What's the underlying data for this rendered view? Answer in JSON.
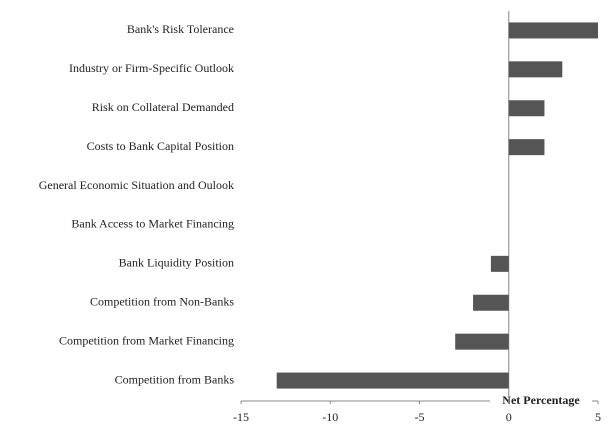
{
  "chart_data": {
    "type": "bar",
    "orientation": "horizontal",
    "categories": [
      "Bank's Risk Tolerance",
      "Industry or Firm-Specific Outlook",
      "Risk on Collateral Demanded",
      "Costs to Bank Capital Position",
      "General Economic Situation and Oulook",
      "Bank Access to Market Financing",
      "Bank Liquidity Position",
      "Competition from Non-Banks",
      "Competition from Market Financing",
      "Competition from Banks"
    ],
    "values": [
      5,
      3,
      2,
      2,
      0,
      0,
      -1,
      -2,
      -3,
      -13
    ],
    "color": "#555555",
    "xlabel": "Net Percentage",
    "xlim": [
      -15,
      5
    ],
    "xticks": [
      -15,
      -10,
      -5,
      0,
      5
    ]
  }
}
